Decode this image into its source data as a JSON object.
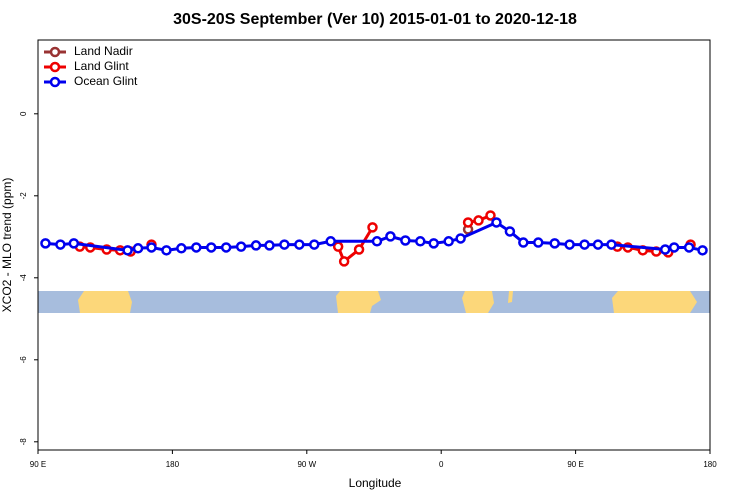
{
  "chart_data": {
    "type": "line",
    "title": "30S-20S September (Ver 10)   2015-01-01 to 2020-12-18",
    "xlabel": "Longitude",
    "ylabel": "XCO2 - MLO trend (ppm)",
    "xlim": [
      90,
      540
    ],
    "xticks": [
      {
        "value": 90,
        "label": "90 E"
      },
      {
        "value": 180,
        "label": "180"
      },
      {
        "value": 270,
        "label": "90 W"
      },
      {
        "value": 360,
        "label": "0"
      },
      {
        "value": 450,
        "label": "90 E"
      },
      {
        "value": 540,
        "label": "180"
      }
    ],
    "ylim": [
      -8.2,
      1.8
    ],
    "yticks": [
      0,
      -2,
      -4,
      -6,
      -8
    ],
    "legend": "upper left",
    "series": [
      {
        "name": "Land Nadir",
        "color": "#993333",
        "x": [
          378
        ],
        "values": [
          -2.82
        ]
      },
      {
        "name": "Land Glint",
        "color": "#ee0000",
        "x": [
          118,
          125,
          136,
          145,
          152,
          null,
          166,
          null,
          291,
          295,
          305,
          314,
          null,
          378,
          385,
          393,
          null,
          478,
          485,
          495,
          504,
          512,
          null,
          527
        ],
        "values": [
          -3.24,
          -3.26,
          -3.31,
          -3.33,
          -3.36,
          null,
          -3.19,
          null,
          -3.24,
          -3.6,
          -3.31,
          -2.77,
          null,
          -2.65,
          -2.6,
          -2.48,
          null,
          -3.24,
          -3.26,
          -3.33,
          -3.36,
          -3.38,
          null,
          -3.19
        ]
      },
      {
        "name": "Ocean Glint",
        "color": "#0000ee",
        "x": [
          95,
          105,
          114,
          150,
          157,
          166,
          176,
          186,
          196,
          206,
          216,
          226,
          236,
          245,
          255,
          265,
          275,
          286,
          317,
          326,
          336,
          346,
          355,
          365,
          373,
          397,
          406,
          415,
          425,
          436,
          446,
          456,
          465,
          474,
          510,
          516,
          526,
          535
        ],
        "values": [
          -3.16,
          -3.19,
          -3.16,
          -3.33,
          -3.28,
          -3.26,
          -3.33,
          -3.28,
          -3.26,
          -3.26,
          -3.26,
          -3.24,
          -3.21,
          -3.21,
          -3.19,
          -3.19,
          -3.19,
          -3.11,
          -3.11,
          -2.99,
          -3.09,
          -3.11,
          -3.16,
          -3.11,
          -3.04,
          -2.65,
          -2.87,
          -3.14,
          -3.14,
          -3.16,
          -3.19,
          -3.19,
          -3.19,
          -3.19,
          -3.31,
          -3.26,
          -3.26,
          -3.33
        ]
      }
    ]
  }
}
